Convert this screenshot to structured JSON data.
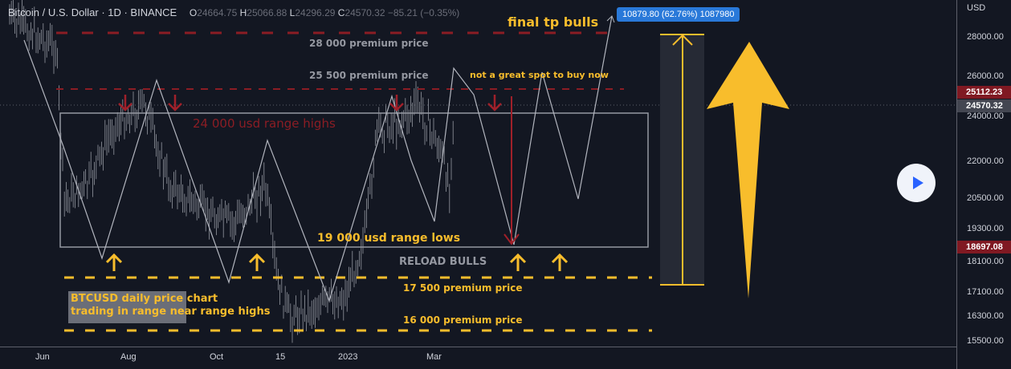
{
  "header": {
    "symbol": "Bitcoin / U.S. Dollar · 1D · BINANCE",
    "open_label": "O",
    "open": "24664.75",
    "high_label": "H",
    "high": "25066.88",
    "low_label": "L",
    "low": "24296.29",
    "close_label": "C",
    "close": "24570.32",
    "change": "−85.21 (−0.35%)"
  },
  "price_axis": {
    "currency": "USD",
    "ticks": [
      "28000.00",
      "26000.00",
      "24000.00",
      "22000.00",
      "20500.00",
      "19300.00",
      "18100.00",
      "17100.00",
      "16300.00",
      "15500.00"
    ],
    "tags": [
      {
        "value": "25112.23",
        "color": "#801922"
      },
      {
        "value": "24570.32",
        "color": "#434651"
      },
      {
        "value": "18697.08",
        "color": "#801922"
      }
    ]
  },
  "time_axis": {
    "ticks": [
      "Jun",
      "Aug",
      "Oct",
      "15",
      "2023",
      "Mar"
    ]
  },
  "annotations": {
    "final_tp": "final tp bulls",
    "premium_28000": "28 000 premium price",
    "premium_25500": "25 500 premium price",
    "not_great": "not a great spot to buy now",
    "range_highs": "24 000 usd range highs",
    "range_lows": "19 000 usd range lows",
    "reload": "RELOAD BULLS",
    "premium_17500": "17 500 premium price",
    "premium_16000": "16 000 premium price",
    "note_line1": "BTCUSD daily price chart",
    "note_line2": "trading in range near range highs"
  },
  "measure": {
    "label": "10879.80 (62.76%) 1087980"
  },
  "colors": {
    "background": "#131722",
    "yellow": "#f8bd2c",
    "red": "#8b1d24",
    "blue": "#2979d9"
  },
  "play_button": {
    "icon": "play-icon"
  }
}
